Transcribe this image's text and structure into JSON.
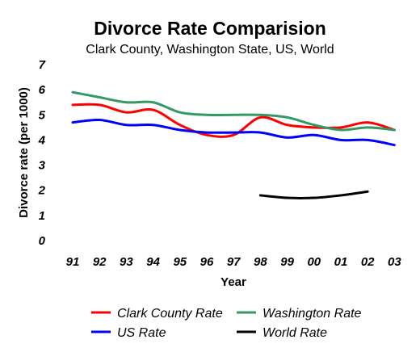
{
  "chart_data": {
    "type": "line",
    "title": "Divorce Rate Comparision",
    "subtitle": "Clark County, Washington State, US, World",
    "xlabel": "Year",
    "ylabel": "Divorce rate (per 1000)",
    "categories": [
      "91",
      "92",
      "93",
      "94",
      "95",
      "96",
      "97",
      "98",
      "99",
      "00",
      "01",
      "02",
      "03"
    ],
    "ylim": [
      0,
      7
    ],
    "yticks": [
      "0",
      "1",
      "2",
      "3",
      "4",
      "5",
      "6",
      "7"
    ],
    "grid": false,
    "legend_position": "bottom",
    "series": [
      {
        "name": "Clark County Rate",
        "color": "#ff0000",
        "values": [
          5.4,
          5.4,
          5.1,
          5.2,
          4.6,
          4.2,
          4.2,
          4.9,
          4.6,
          4.5,
          4.5,
          4.7,
          4.4
        ]
      },
      {
        "name": "Washington Rate",
        "color": "#339966",
        "values": [
          5.9,
          5.7,
          5.5,
          5.5,
          5.1,
          5.0,
          5.0,
          5.0,
          4.9,
          4.6,
          4.4,
          4.5,
          4.4
        ]
      },
      {
        "name": "US Rate",
        "color": "#0000ff",
        "values": [
          4.7,
          4.8,
          4.6,
          4.6,
          4.4,
          4.3,
          4.3,
          4.3,
          4.1,
          4.2,
          4.0,
          4.0,
          3.8
        ]
      },
      {
        "name": "World Rate",
        "color": "#000000",
        "values": [
          null,
          null,
          null,
          null,
          null,
          null,
          null,
          1.8,
          1.7,
          1.7,
          1.8,
          1.95,
          null
        ]
      }
    ]
  }
}
